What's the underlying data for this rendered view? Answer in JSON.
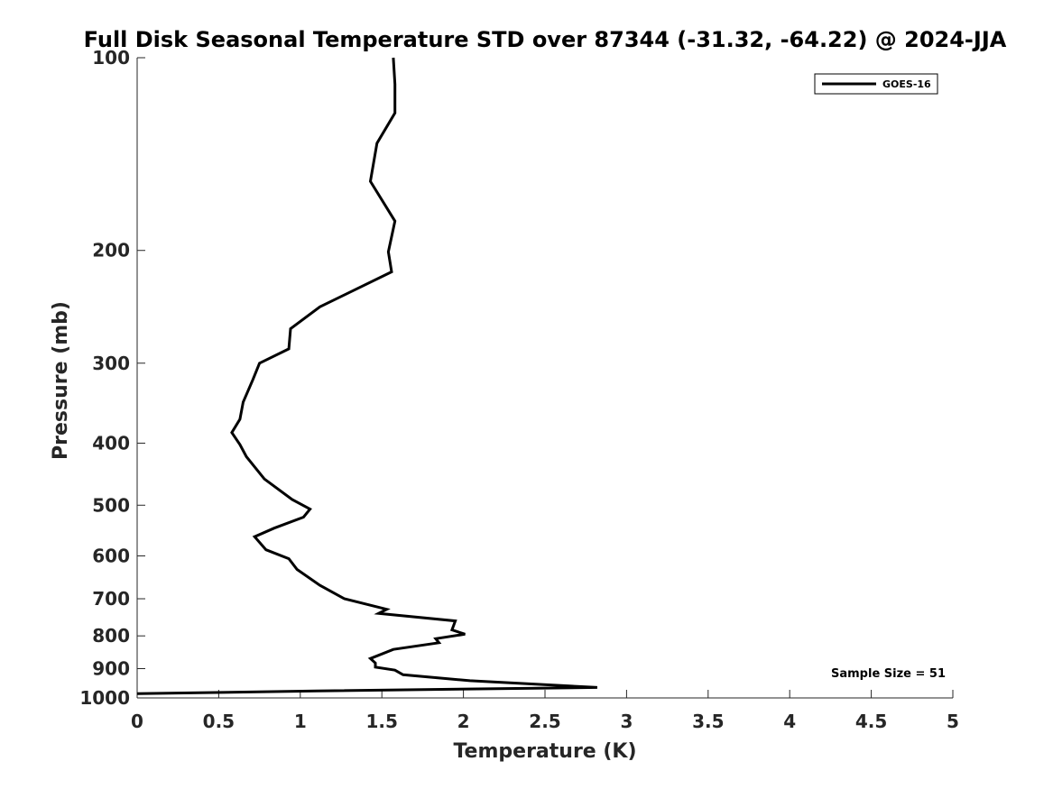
{
  "chart_data": {
    "type": "line",
    "title": "Full Disk Seasonal Temperature STD over 87344 (-31.32, -64.22) @ 2024-JJA",
    "xlabel": "Temperature (K)",
    "ylabel": "Pressure (mb)",
    "xlim": [
      0,
      5
    ],
    "ylim": [
      100,
      1000
    ],
    "yscale": "log",
    "y_reversed": true,
    "x_ticks": [
      0,
      0.5,
      1,
      1.5,
      2,
      2.5,
      3,
      3.5,
      4,
      4.5,
      5
    ],
    "x_tick_labels": [
      "0",
      "0.5",
      "1",
      "1.5",
      "2",
      "2.5",
      "3",
      "3.5",
      "4",
      "4.5",
      "5"
    ],
    "y_ticks": [
      100,
      200,
      300,
      400,
      500,
      600,
      700,
      800,
      900,
      1000
    ],
    "y_tick_labels": [
      "100",
      "200",
      "300",
      "400",
      "500",
      "600",
      "700",
      "800",
      "900",
      "1000"
    ],
    "grid": false,
    "legend_position": "top-right",
    "annotation": "Sample Size = 51",
    "series": [
      {
        "name": "GOES-16",
        "color": "#000000",
        "x": [
          1.57,
          1.58,
          1.58,
          1.47,
          1.43,
          1.58,
          1.54,
          1.56,
          1.12,
          0.94,
          0.93,
          0.75,
          0.71,
          0.65,
          0.63,
          0.58,
          0.63,
          0.67,
          0.78,
          0.95,
          1.06,
          1.02,
          0.84,
          0.72,
          0.79,
          0.93,
          0.98,
          1.12,
          1.27,
          1.53,
          1.48,
          1.95,
          1.93,
          2.01,
          1.83,
          1.85,
          1.57,
          1.43,
          1.46,
          1.46,
          1.58,
          1.63,
          2.04,
          2.82,
          1.1,
          0.0
        ],
        "y": [
          100,
          110,
          122,
          136,
          156,
          180,
          201,
          216,
          245,
          265,
          285,
          300,
          318,
          345,
          367,
          385,
          402,
          420,
          455,
          490,
          507,
          522,
          543,
          560,
          587,
          606,
          630,
          667,
          700,
          727,
          738,
          758,
          783,
          795,
          808,
          820,
          840,
          868,
          882,
          895,
          905,
          920,
          940,
          963,
          975,
          985
        ]
      }
    ]
  }
}
